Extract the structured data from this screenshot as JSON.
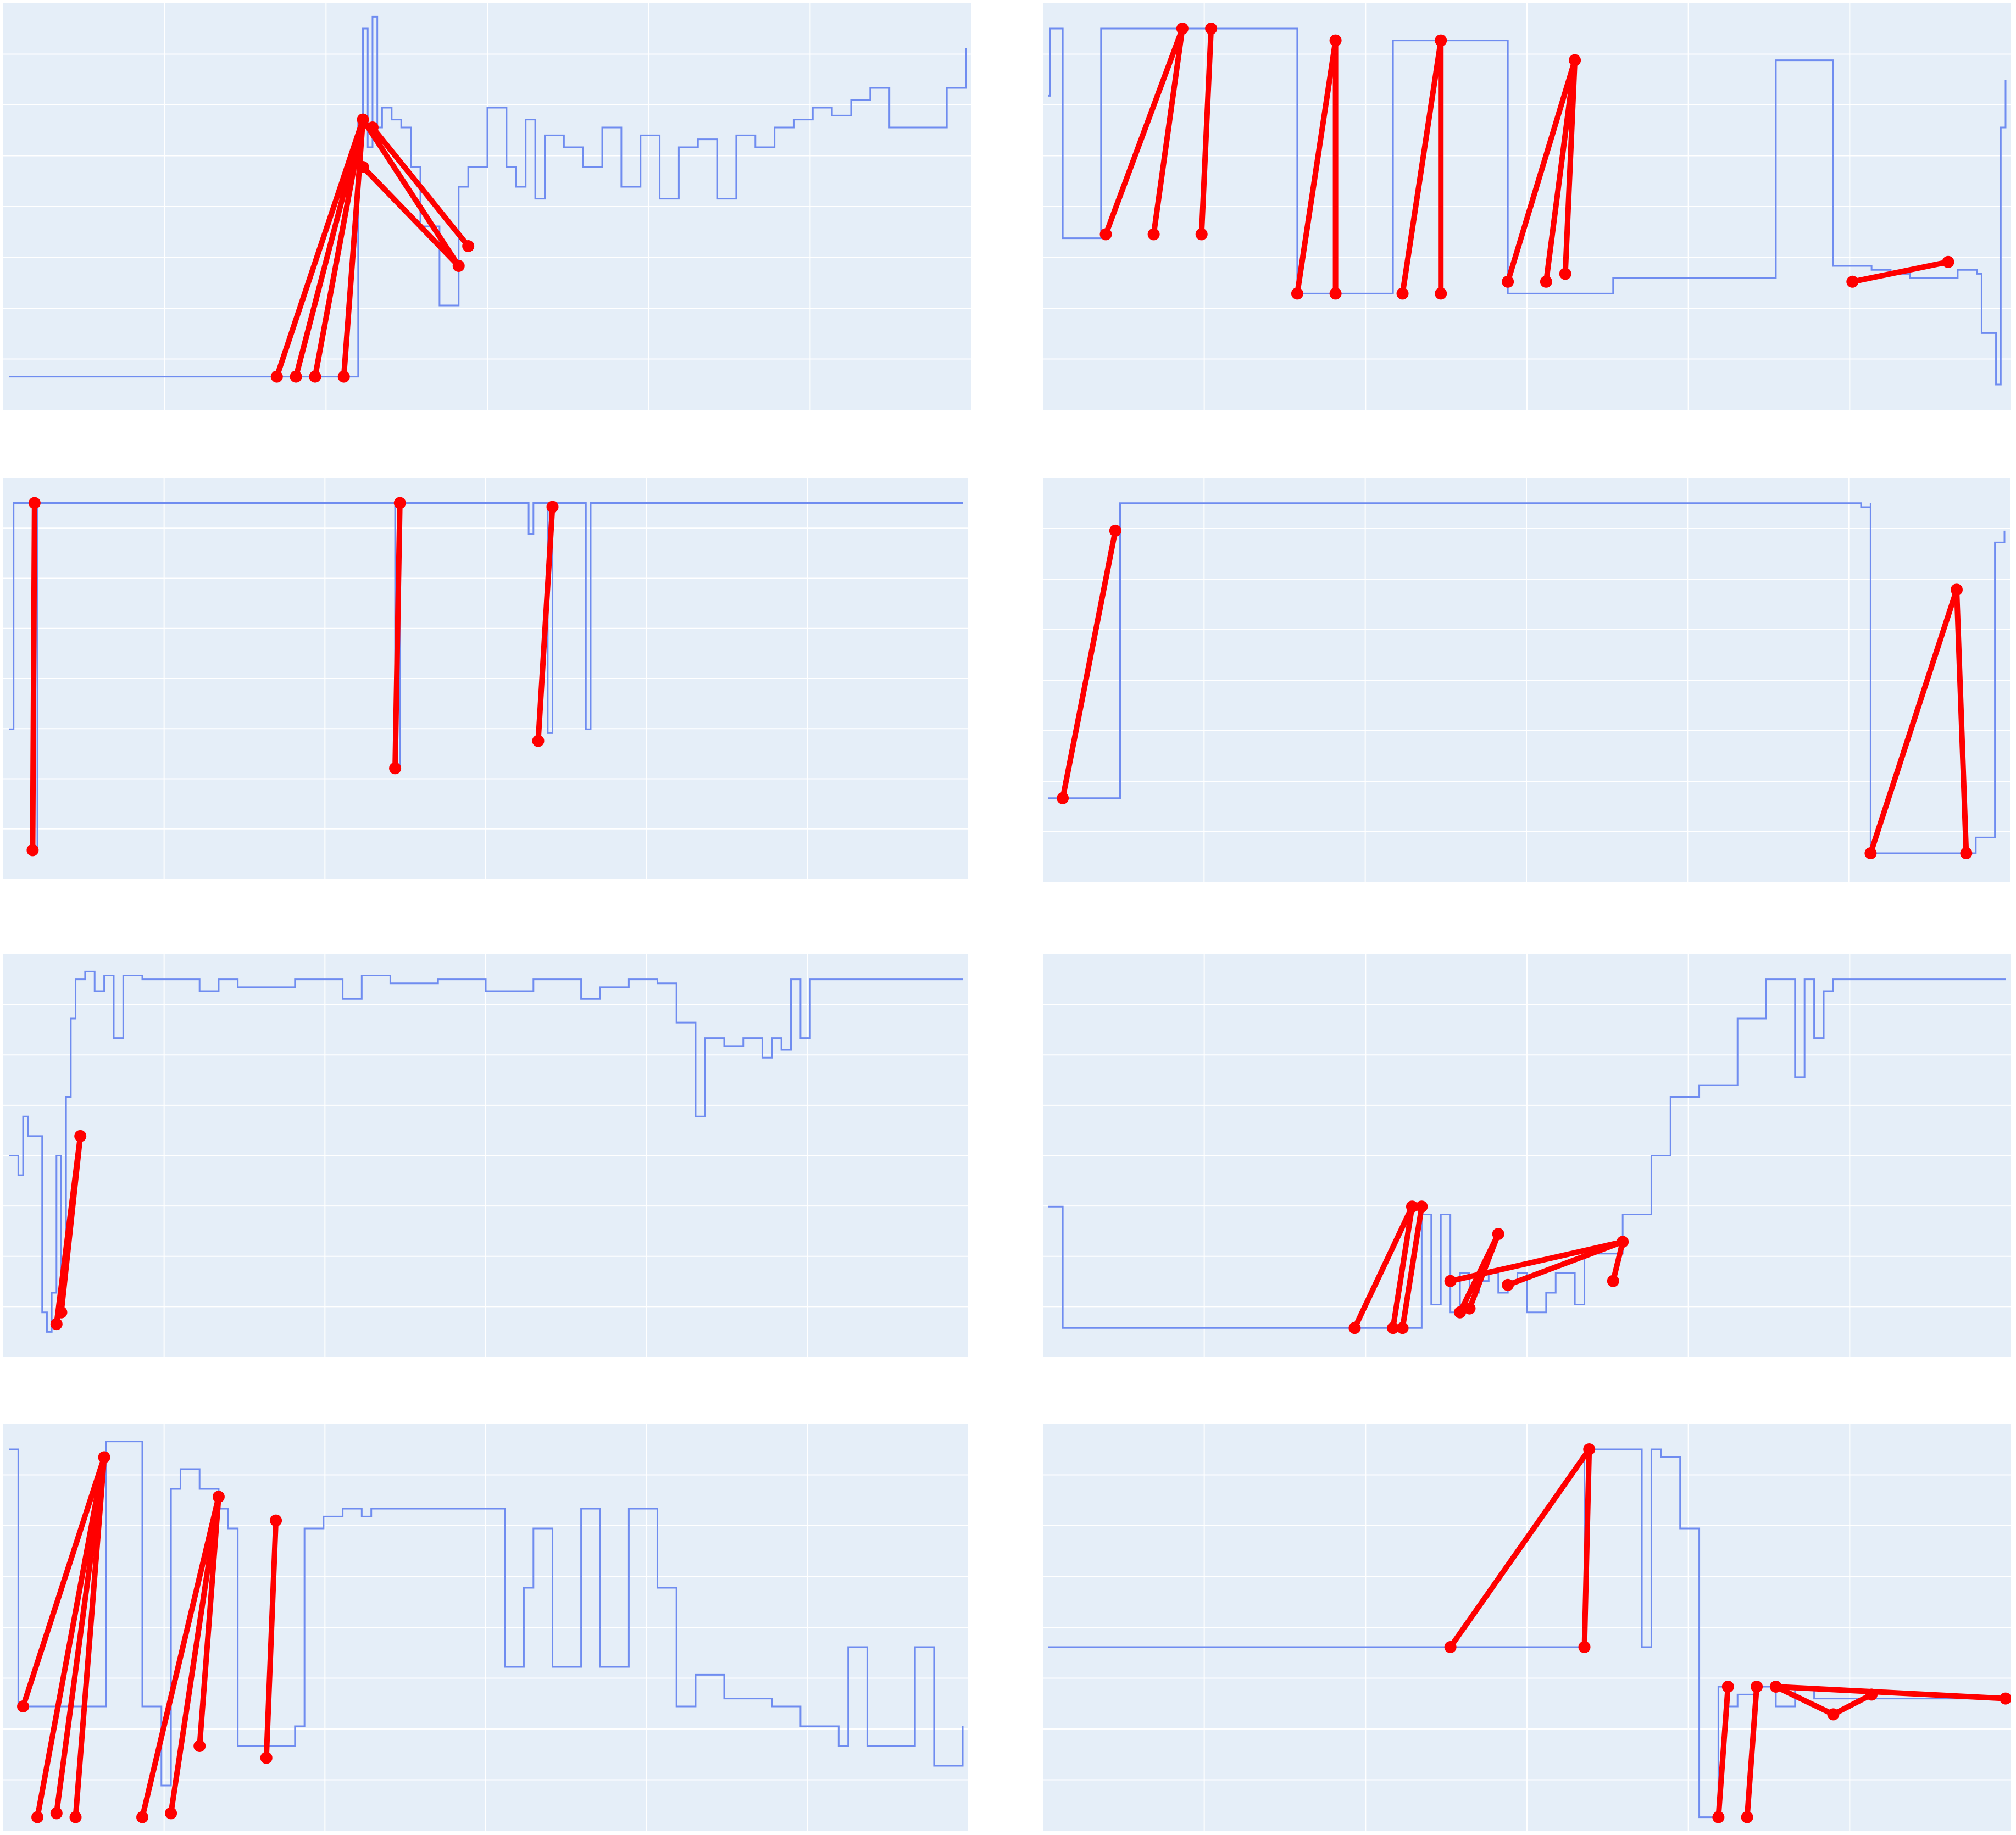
{
  "style": {
    "background": "#ffffff",
    "plot_bg": "#e5eef8",
    "grid": "#ffffff",
    "series_color": "#6f8cf0",
    "marker_color": "#ff0000"
  },
  "chart_data": [
    {
      "type": "line",
      "ylim": [
        0,
        1
      ],
      "grid": true,
      "legend": "none",
      "series": [
        {
          "x": [
            0,
            0.28,
            0.36,
            0.365,
            0.37,
            0.375,
            0.38,
            0.385,
            0.39,
            0.4,
            0.41,
            0.42,
            0.43,
            0.45,
            0.47,
            0.48,
            0.5,
            0.52,
            0.53,
            0.54,
            0.55,
            0.56,
            0.58,
            0.6,
            0.62,
            0.64,
            0.66,
            0.68,
            0.7,
            0.72,
            0.74,
            0.76,
            0.78,
            0.8,
            0.82,
            0.84,
            0.86,
            0.88,
            0.9,
            0.92,
            0.94,
            0.96,
            0.98,
            1
          ],
          "y": [
            0.07,
            0.07,
            0.07,
            0.72,
            0.95,
            0.65,
            0.98,
            0.7,
            0.75,
            0.72,
            0.7,
            0.6,
            0.45,
            0.25,
            0.55,
            0.6,
            0.75,
            0.6,
            0.55,
            0.72,
            0.52,
            0.68,
            0.65,
            0.6,
            0.7,
            0.55,
            0.68,
            0.52,
            0.65,
            0.67,
            0.52,
            0.68,
            0.65,
            0.7,
            0.72,
            0.75,
            0.73,
            0.77,
            0.8,
            0.7,
            0.7,
            0.7,
            0.8,
            0.9
          ]
        }
      ],
      "markers": [
        {
          "x": 0.28,
          "y": 0.07
        },
        {
          "x": 0.3,
          "y": 0.07
        },
        {
          "x": 0.32,
          "y": 0.07
        },
        {
          "x": 0.35,
          "y": 0.07
        },
        {
          "x": 0.37,
          "y": 0.72
        },
        {
          "x": 0.38,
          "y": 0.7
        },
        {
          "x": 0.37,
          "y": 0.6
        },
        {
          "x": 0.47,
          "y": 0.35
        },
        {
          "x": 0.48,
          "y": 0.4
        }
      ],
      "links": [
        [
          0,
          4
        ],
        [
          1,
          4
        ],
        [
          2,
          4
        ],
        [
          3,
          4
        ],
        [
          4,
          7
        ],
        [
          5,
          8
        ],
        [
          6,
          7
        ]
      ]
    },
    {
      "type": "line",
      "ylim": [
        0,
        1
      ],
      "grid": true,
      "legend": "none",
      "series": [
        {
          "x": [
            0,
            0.002,
            0.002,
            0.015,
            0.015,
            0.055,
            0.055,
            0.26,
            0.26,
            0.36,
            0.36,
            0.48,
            0.48,
            0.59,
            0.59,
            0.76,
            0.76,
            0.82,
            0.82,
            0.84,
            0.86,
            0.88,
            0.9,
            0.95,
            0.97,
            0.975,
            0.99,
            0.995,
            1
          ],
          "y": [
            0.78,
            0.78,
            0.95,
            0.95,
            0.42,
            0.42,
            0.95,
            0.95,
            0.28,
            0.28,
            0.92,
            0.92,
            0.28,
            0.28,
            0.32,
            0.32,
            0.87,
            0.87,
            0.35,
            0.35,
            0.34,
            0.33,
            0.32,
            0.34,
            0.33,
            0.18,
            0.05,
            0.7,
            0.82
          ]
        }
      ],
      "markers": [
        {
          "x": 0.06,
          "y": 0.43
        },
        {
          "x": 0.11,
          "y": 0.43
        },
        {
          "x": 0.14,
          "y": 0.95
        },
        {
          "x": 0.16,
          "y": 0.43
        },
        {
          "x": 0.17,
          "y": 0.95
        },
        {
          "x": 0.26,
          "y": 0.28
        },
        {
          "x": 0.3,
          "y": 0.28
        },
        {
          "x": 0.3,
          "y": 0.92
        },
        {
          "x": 0.37,
          "y": 0.28
        },
        {
          "x": 0.41,
          "y": 0.28
        },
        {
          "x": 0.41,
          "y": 0.92
        },
        {
          "x": 0.48,
          "y": 0.31
        },
        {
          "x": 0.52,
          "y": 0.31
        },
        {
          "x": 0.54,
          "y": 0.33
        },
        {
          "x": 0.55,
          "y": 0.87
        },
        {
          "x": 0.84,
          "y": 0.31
        },
        {
          "x": 0.94,
          "y": 0.36
        }
      ],
      "links": [
        [
          0,
          2
        ],
        [
          1,
          2
        ],
        [
          3,
          4
        ],
        [
          5,
          7
        ],
        [
          6,
          7
        ],
        [
          8,
          10
        ],
        [
          9,
          10
        ],
        [
          11,
          14
        ],
        [
          12,
          14
        ],
        [
          13,
          14
        ],
        [
          15,
          16
        ]
      ]
    },
    {
      "type": "line",
      "ylim": [
        0,
        1
      ],
      "grid": true,
      "legend": "none",
      "series": [
        {
          "x": [
            0,
            0.005,
            0.005,
            0.02,
            0.025,
            0.03,
            0.4,
            0.405,
            0.41,
            0.54,
            0.545,
            0.55,
            0.56,
            0.565,
            0.57,
            0.6,
            0.605,
            0.61,
            1
          ],
          "y": [
            0.37,
            0.37,
            0.95,
            0.95,
            0.06,
            0.95,
            0.95,
            0.27,
            0.95,
            0.95,
            0.87,
            0.95,
            0.95,
            0.36,
            0.95,
            0.95,
            0.37,
            0.95,
            0.95
          ]
        }
      ],
      "markers": [
        {
          "x": 0.025,
          "y": 0.06
        },
        {
          "x": 0.027,
          "y": 0.95
        },
        {
          "x": 0.405,
          "y": 0.27
        },
        {
          "x": 0.41,
          "y": 0.95
        },
        {
          "x": 0.555,
          "y": 0.34
        },
        {
          "x": 0.57,
          "y": 0.94
        }
      ],
      "links": [
        [
          0,
          1
        ],
        [
          2,
          3
        ],
        [
          4,
          5
        ]
      ]
    },
    {
      "type": "line",
      "ylim": [
        0,
        1
      ],
      "grid": true,
      "legend": "none",
      "series": [
        {
          "x": [
            0,
            0.07,
            0.075,
            0.08,
            0.83,
            0.85,
            0.86,
            0.86,
            0.96,
            0.97,
            0.99,
            1
          ],
          "y": [
            0.2,
            0.2,
            0.95,
            0.95,
            0.95,
            0.94,
            0.95,
            0.06,
            0.06,
            0.1,
            0.85,
            0.88
          ]
        }
      ],
      "markers": [
        {
          "x": 0.015,
          "y": 0.2
        },
        {
          "x": 0.07,
          "y": 0.88
        },
        {
          "x": 0.86,
          "y": 0.06
        },
        {
          "x": 0.95,
          "y": 0.73
        },
        {
          "x": 0.96,
          "y": 0.06
        }
      ],
      "links": [
        [
          0,
          1
        ],
        [
          2,
          3
        ],
        [
          4,
          3
        ]
      ]
    },
    {
      "type": "line",
      "ylim": [
        0,
        1
      ],
      "grid": true,
      "legend": "none",
      "series": [
        {
          "x": [
            0,
            0.01,
            0.015,
            0.02,
            0.035,
            0.04,
            0.045,
            0.05,
            0.055,
            0.06,
            0.065,
            0.07,
            0.08,
            0.09,
            0.1,
            0.11,
            0.12,
            0.14,
            0.2,
            0.22,
            0.24,
            0.3,
            0.35,
            0.37,
            0.4,
            0.45,
            0.5,
            0.55,
            0.6,
            0.62,
            0.65,
            0.68,
            0.7,
            0.72,
            0.73,
            0.75,
            0.77,
            0.79,
            0.8,
            0.81,
            0.82,
            0.83,
            0.84,
            0.85,
            0.86,
            1
          ],
          "y": [
            0.5,
            0.45,
            0.6,
            0.55,
            0.1,
            0.05,
            0.15,
            0.5,
            0.2,
            0.65,
            0.85,
            0.95,
            0.97,
            0.92,
            0.96,
            0.8,
            0.96,
            0.95,
            0.92,
            0.95,
            0.93,
            0.95,
            0.9,
            0.96,
            0.94,
            0.95,
            0.92,
            0.95,
            0.9,
            0.93,
            0.95,
            0.94,
            0.84,
            0.6,
            0.8,
            0.78,
            0.8,
            0.75,
            0.8,
            0.77,
            0.95,
            0.8,
            0.95,
            0.95,
            0.95,
            0.95
          ]
        }
      ],
      "markers": [
        {
          "x": 0.05,
          "y": 0.07
        },
        {
          "x": 0.055,
          "y": 0.1
        },
        {
          "x": 0.075,
          "y": 0.55
        }
      ],
      "links": [
        [
          0,
          2
        ],
        [
          1,
          2
        ]
      ]
    },
    {
      "type": "line",
      "ylim": [
        0,
        1
      ],
      "grid": true,
      "legend": "none",
      "series": [
        {
          "x": [
            0,
            0.01,
            0.015,
            0.32,
            0.38,
            0.39,
            0.4,
            0.41,
            0.42,
            0.43,
            0.44,
            0.45,
            0.46,
            0.47,
            0.48,
            0.49,
            0.5,
            0.52,
            0.53,
            0.54,
            0.55,
            0.56,
            0.6,
            0.63,
            0.65,
            0.68,
            0.72,
            0.75,
            0.78,
            0.79,
            0.8,
            0.81,
            0.82,
            0.83,
            1
          ],
          "y": [
            0.37,
            0.37,
            0.06,
            0.06,
            0.06,
            0.35,
            0.12,
            0.35,
            0.1,
            0.2,
            0.15,
            0.18,
            0.2,
            0.15,
            0.18,
            0.2,
            0.1,
            0.15,
            0.2,
            0.2,
            0.12,
            0.25,
            0.35,
            0.5,
            0.65,
            0.68,
            0.85,
            0.95,
            0.7,
            0.95,
            0.8,
            0.92,
            0.95,
            0.95,
            0.95
          ]
        }
      ],
      "markers": [
        {
          "x": 0.32,
          "y": 0.06
        },
        {
          "x": 0.36,
          "y": 0.06
        },
        {
          "x": 0.38,
          "y": 0.37
        },
        {
          "x": 0.37,
          "y": 0.06
        },
        {
          "x": 0.39,
          "y": 0.37
        },
        {
          "x": 0.43,
          "y": 0.1
        },
        {
          "x": 0.44,
          "y": 0.11
        },
        {
          "x": 0.47,
          "y": 0.3
        },
        {
          "x": 0.42,
          "y": 0.18
        },
        {
          "x": 0.48,
          "y": 0.17
        },
        {
          "x": 0.6,
          "y": 0.28
        },
        {
          "x": 0.59,
          "y": 0.18
        }
      ],
      "links": [
        [
          0,
          2
        ],
        [
          1,
          2
        ],
        [
          3,
          4
        ],
        [
          5,
          7
        ],
        [
          6,
          7
        ],
        [
          8,
          10
        ],
        [
          9,
          10
        ],
        [
          11,
          10
        ]
      ]
    },
    {
      "type": "line",
      "ylim": [
        0,
        1
      ],
      "grid": true,
      "legend": "none",
      "series": [
        {
          "x": [
            0,
            0.005,
            0.01,
            0.1,
            0.102,
            0.13,
            0.14,
            0.16,
            0.17,
            0.18,
            0.2,
            0.22,
            0.23,
            0.24,
            0.3,
            0.31,
            0.33,
            0.35,
            0.37,
            0.38,
            0.4,
            0.43,
            0.5,
            0.52,
            0.54,
            0.55,
            0.57,
            0.6,
            0.62,
            0.65,
            0.68,
            0.7,
            0.72,
            0.75,
            0.8,
            0.83,
            0.87,
            0.88,
            0.9,
            0.95,
            0.97,
            1
          ],
          "y": [
            0.95,
            0.95,
            0.3,
            0.3,
            0.97,
            0.97,
            0.3,
            0.1,
            0.85,
            0.9,
            0.85,
            0.8,
            0.75,
            0.2,
            0.25,
            0.75,
            0.78,
            0.8,
            0.78,
            0.8,
            0.8,
            0.8,
            0.8,
            0.4,
            0.6,
            0.75,
            0.4,
            0.8,
            0.4,
            0.8,
            0.6,
            0.3,
            0.38,
            0.32,
            0.3,
            0.25,
            0.2,
            0.45,
            0.2,
            0.45,
            0.15,
            0.25
          ]
        }
      ],
      "markers": [
        {
          "x": 0.015,
          "y": 0.3
        },
        {
          "x": 0.03,
          "y": 0.02
        },
        {
          "x": 0.05,
          "y": 0.03
        },
        {
          "x": 0.07,
          "y": 0.02
        },
        {
          "x": 0.1,
          "y": 0.93
        },
        {
          "x": 0.14,
          "y": 0.02
        },
        {
          "x": 0.17,
          "y": 0.03
        },
        {
          "x": 0.2,
          "y": 0.2
        },
        {
          "x": 0.22,
          "y": 0.83
        },
        {
          "x": 0.27,
          "y": 0.17
        },
        {
          "x": 0.28,
          "y": 0.77
        }
      ],
      "links": [
        [
          0,
          4
        ],
        [
          1,
          4
        ],
        [
          2,
          4
        ],
        [
          3,
          4
        ],
        [
          5,
          8
        ],
        [
          6,
          8
        ],
        [
          7,
          8
        ],
        [
          9,
          10
        ]
      ]
    },
    {
      "type": "line",
      "ylim": [
        0,
        1
      ],
      "grid": true,
      "legend": "none",
      "series": [
        {
          "x": [
            0,
            0.5,
            0.52,
            0.56,
            0.59,
            0.62,
            0.63,
            0.64,
            0.66,
            0.68,
            0.7,
            0.71,
            0.72,
            0.74,
            0.76,
            0.78,
            0.8,
            0.85,
            0.9,
            1
          ],
          "y": [
            0.45,
            0.45,
            0.45,
            0.95,
            0.95,
            0.45,
            0.95,
            0.93,
            0.75,
            0.02,
            0.35,
            0.3,
            0.33,
            0.35,
            0.3,
            0.35,
            0.32,
            0.32,
            0.32,
            0.32
          ]
        }
      ],
      "markers": [
        {
          "x": 0.42,
          "y": 0.45
        },
        {
          "x": 0.56,
          "y": 0.45
        },
        {
          "x": 0.565,
          "y": 0.95
        },
        {
          "x": 0.7,
          "y": 0.02
        },
        {
          "x": 0.71,
          "y": 0.35
        },
        {
          "x": 0.73,
          "y": 0.02
        },
        {
          "x": 0.74,
          "y": 0.35
        },
        {
          "x": 0.76,
          "y": 0.35
        },
        {
          "x": 0.82,
          "y": 0.28
        },
        {
          "x": 0.86,
          "y": 0.33
        },
        {
          "x": 1,
          "y": 0.32
        }
      ],
      "links": [
        [
          0,
          2
        ],
        [
          1,
          2
        ],
        [
          3,
          4
        ],
        [
          5,
          6
        ],
        [
          7,
          8
        ],
        [
          8,
          9
        ],
        [
          7,
          10
        ]
      ]
    }
  ]
}
